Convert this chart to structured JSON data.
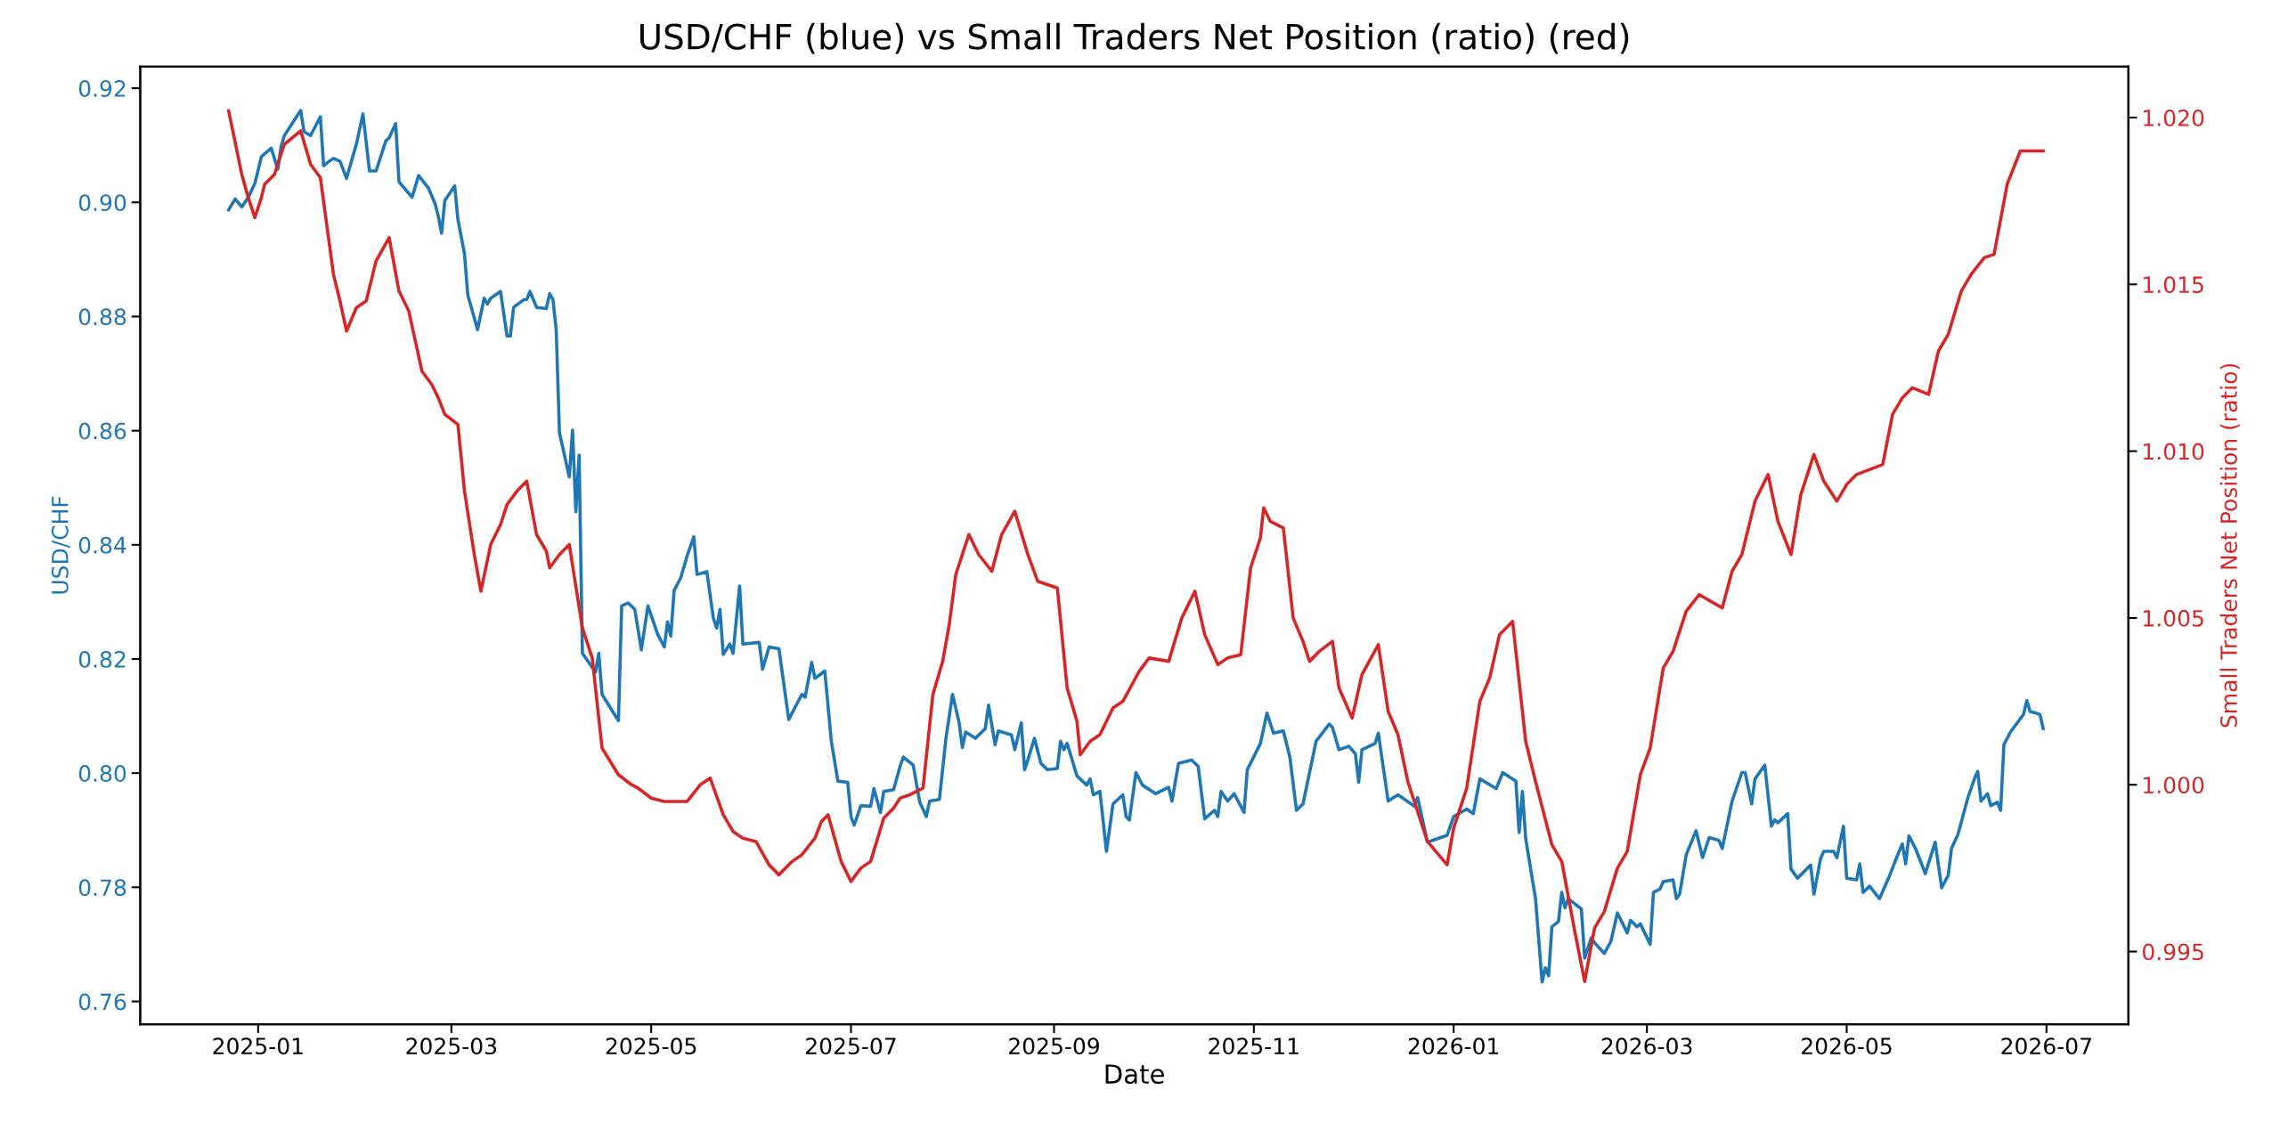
{
  "chart_data": {
    "type": "line",
    "title": "USD/CHF (blue) vs Small Traders Net Position (ratio) (red)",
    "xlabel": "Date",
    "ylabel": "USD/CHF",
    "y2label": "Small Traders Net Position (ratio)",
    "xlim": [
      "2024-11-26",
      "2026-07-26"
    ],
    "xticks": [
      {
        "value": "2025-01-01",
        "label": "2025-01"
      },
      {
        "value": "2025-03-01",
        "label": "2025-03"
      },
      {
        "value": "2025-05-01",
        "label": "2025-05"
      },
      {
        "value": "2025-07-01",
        "label": "2025-07"
      },
      {
        "value": "2025-09-01",
        "label": "2025-09"
      },
      {
        "value": "2025-11-01",
        "label": "2025-11"
      },
      {
        "value": "2026-01-01",
        "label": "2026-01"
      },
      {
        "value": "2026-03-01",
        "label": "2026-03"
      },
      {
        "value": "2026-05-01",
        "label": "2026-05"
      },
      {
        "value": "2026-07-01",
        "label": "2026-07"
      }
    ],
    "ylim": [
      0.756,
      0.9238
    ],
    "yticks": [
      0.76,
      0.78,
      {
        "value": 0.8,
        "label": "0.80"
      },
      0.82,
      0.84,
      0.86,
      0.88,
      {
        "value": 0.9,
        "label": "0.90"
      },
      0.92
    ],
    "y2lim": [
      0.99282,
      1.02153
    ],
    "y2ticks": [
      0.995,
      {
        "value": 1.0,
        "label": "1.000"
      },
      1.005,
      {
        "value": 1.01,
        "label": "1.010"
      },
      1.015,
      {
        "value": 1.02,
        "label": "1.020"
      }
    ],
    "grid": false,
    "series": [
      {
        "color": "#1f77b4",
        "axis": "y",
        "x": [
          "2024-12-23",
          "2024-12-25",
          "2024-12-27",
          "2024-12-29",
          "2024-12-31",
          "2025-01-02",
          "2025-01-05",
          "2025-01-07",
          "2025-01-08",
          "2025-01-09",
          "2025-01-14",
          "2025-01-15",
          "2025-01-17",
          "2025-01-20",
          "2025-01-21",
          "2025-01-22",
          "2025-01-24",
          "2025-01-26",
          "2025-01-28",
          "2025-01-31",
          "2025-02-02",
          "2025-02-04",
          "2025-02-06",
          "2025-02-09",
          "2025-02-10",
          "2025-02-12",
          "2025-02-13",
          "2025-02-17",
          "2025-02-19",
          "2025-02-22",
          "2025-02-24",
          "2025-02-25",
          "2025-02-26",
          "2025-02-27",
          "2025-03-02",
          "2025-03-03",
          "2025-03-05",
          "2025-03-06",
          "2025-03-09",
          "2025-03-11",
          "2025-03-12",
          "2025-03-13",
          "2025-03-16",
          "2025-03-18",
          "2025-03-19",
          "2025-03-20",
          "2025-03-23",
          "2025-03-24",
          "2025-03-25",
          "2025-03-27",
          "2025-03-30",
          "2025-03-31",
          "2025-04-01",
          "2025-04-02",
          "2025-04-03",
          "2025-04-06",
          "2025-04-07",
          "2025-04-08",
          "2025-04-09",
          "2025-04-10",
          "2025-04-14",
          "2025-04-15",
          "2025-04-16",
          "2025-04-21",
          "2025-04-22",
          "2025-04-24",
          "2025-04-26",
          "2025-04-28",
          "2025-04-30",
          "2025-05-03",
          "2025-05-05",
          "2025-05-06",
          "2025-05-07",
          "2025-05-08",
          "2025-05-10",
          "2025-05-12",
          "2025-05-14",
          "2025-05-15",
          "2025-05-18",
          "2025-05-20",
          "2025-05-21",
          "2025-05-22",
          "2025-05-23",
          "2025-05-25",
          "2025-05-26",
          "2025-05-28",
          "2025-05-29",
          "2025-06-03",
          "2025-06-04",
          "2025-06-06",
          "2025-06-09",
          "2025-06-12",
          "2025-06-16",
          "2025-06-17",
          "2025-06-19",
          "2025-06-20",
          "2025-06-23",
          "2025-06-25",
          "2025-06-27",
          "2025-06-30",
          "2025-07-01",
          "2025-07-02",
          "2025-07-04",
          "2025-07-07",
          "2025-07-08",
          "2025-07-10",
          "2025-07-11",
          "2025-07-14",
          "2025-07-16",
          "2025-07-17",
          "2025-07-20",
          "2025-07-22",
          "2025-07-24",
          "2025-07-25",
          "2025-07-28",
          "2025-07-30",
          "2025-08-01",
          "2025-08-03",
          "2025-08-04",
          "2025-08-05",
          "2025-08-08",
          "2025-08-11",
          "2025-08-12",
          "2025-08-14",
          "2025-08-15",
          "2025-08-19",
          "2025-08-20",
          "2025-08-22",
          "2025-08-23",
          "2025-08-24",
          "2025-08-26",
          "2025-08-28",
          "2025-08-30",
          "2025-09-02",
          "2025-09-03",
          "2025-09-04",
          "2025-09-05",
          "2025-09-08",
          "2025-09-11",
          "2025-09-12",
          "2025-09-13",
          "2025-09-15",
          "2025-09-17",
          "2025-09-19",
          "2025-09-22",
          "2025-09-23",
          "2025-09-24",
          "2025-09-26",
          "2025-09-28",
          "2025-10-02",
          "2025-10-06",
          "2025-10-07",
          "2025-10-09",
          "2025-10-13",
          "2025-10-15",
          "2025-10-17",
          "2025-10-20",
          "2025-10-21",
          "2025-10-22",
          "2025-10-24",
          "2025-10-26",
          "2025-10-29",
          "2025-10-30",
          "2025-11-03",
          "2025-11-05",
          "2025-11-07",
          "2025-11-10",
          "2025-11-12",
          "2025-11-14",
          "2025-11-16",
          "2025-11-20",
          "2025-11-24",
          "2025-11-25",
          "2025-11-27",
          "2025-11-30",
          "2025-12-02",
          "2025-12-03",
          "2025-12-04",
          "2025-12-08",
          "2025-12-09",
          "2025-12-12",
          "2025-12-15",
          "2025-12-20",
          "2025-12-21",
          "2025-12-24",
          "2025-12-30",
          "2026-01-01",
          "2026-01-05",
          "2026-01-07",
          "2026-01-09",
          "2026-01-14",
          "2026-01-16",
          "2026-01-20",
          "2026-01-21",
          "2026-01-22",
          "2026-01-23",
          "2026-01-26",
          "2026-01-28",
          "2026-01-29",
          "2026-01-30",
          "2026-01-31",
          "2026-02-02",
          "2026-02-03",
          "2026-02-04",
          "2026-02-05",
          "2026-02-09",
          "2026-02-10",
          "2026-02-12",
          "2026-02-13",
          "2026-02-16",
          "2026-02-18",
          "2026-02-20",
          "2026-02-23",
          "2026-02-24",
          "2026-02-26",
          "2026-02-27",
          "2026-03-02",
          "2026-03-03",
          "2026-03-05",
          "2026-03-06",
          "2026-03-09",
          "2026-03-10",
          "2026-03-11",
          "2026-03-13",
          "2026-03-16",
          "2026-03-18",
          "2026-03-20",
          "2026-03-23",
          "2026-03-24",
          "2026-03-27",
          "2026-03-30",
          "2026-03-31",
          "2026-04-02",
          "2026-04-03",
          "2026-04-06",
          "2026-04-08",
          "2026-04-09",
          "2026-04-10",
          "2026-04-13",
          "2026-04-14",
          "2026-04-16",
          "2026-04-20",
          "2026-04-21",
          "2026-04-23",
          "2026-04-24",
          "2026-04-27",
          "2026-04-28",
          "2026-04-30",
          "2026-05-01",
          "2026-05-04",
          "2026-05-05",
          "2026-05-06",
          "2026-05-08",
          "2026-05-11",
          "2026-05-14",
          "2026-05-17",
          "2026-05-18",
          "2026-05-19",
          "2026-05-20",
          "2026-05-22",
          "2026-05-25",
          "2026-05-28",
          "2026-05-30",
          "2026-06-01",
          "2026-06-02",
          "2026-06-04",
          "2026-06-07",
          "2026-06-09",
          "2026-06-10",
          "2026-06-11",
          "2026-06-13",
          "2026-06-14",
          "2026-06-16",
          "2026-06-17",
          "2026-06-18",
          "2026-06-20",
          "2026-06-24",
          "2026-06-25",
          "2026-06-26",
          "2026-06-29",
          "2026-06-30"
        ],
        "values": [
          0.8987,
          0.9006,
          0.8992,
          0.9009,
          0.9033,
          0.908,
          0.9095,
          0.9058,
          0.9097,
          0.9117,
          0.9161,
          0.9124,
          0.9117,
          0.915,
          0.9064,
          0.9069,
          0.9077,
          0.9072,
          0.9042,
          0.9102,
          0.9155,
          0.9055,
          0.9055,
          0.9108,
          0.9113,
          0.9138,
          0.9036,
          0.9009,
          0.9047,
          0.9025,
          0.8998,
          0.8976,
          0.8946,
          0.9003,
          0.9029,
          0.897,
          0.891,
          0.8838,
          0.8777,
          0.8832,
          0.8822,
          0.8832,
          0.8844,
          0.8766,
          0.8766,
          0.8816,
          0.8829,
          0.883,
          0.8844,
          0.8816,
          0.8814,
          0.884,
          0.883,
          0.8777,
          0.8596,
          0.8519,
          0.8601,
          0.8458,
          0.8557,
          0.821,
          0.8177,
          0.821,
          0.8138,
          0.8092,
          0.8293,
          0.8298,
          0.8287,
          0.8216,
          0.8293,
          0.8243,
          0.8221,
          0.8265,
          0.824,
          0.832,
          0.8342,
          0.8381,
          0.8414,
          0.8348,
          0.8353,
          0.8271,
          0.8254,
          0.8287,
          0.8208,
          0.8226,
          0.821,
          0.8328,
          0.8226,
          0.8229,
          0.8182,
          0.8221,
          0.8218,
          0.8094,
          0.8138,
          0.8133,
          0.8194,
          0.8166,
          0.8179,
          0.8056,
          0.7986,
          0.7984,
          0.7924,
          0.7909,
          0.7943,
          0.7942,
          0.7973,
          0.7931,
          0.7968,
          0.7971,
          0.8012,
          0.8028,
          0.8014,
          0.7949,
          0.7924,
          0.7951,
          0.7954,
          0.8061,
          0.8138,
          0.8089,
          0.8045,
          0.8072,
          0.8061,
          0.8078,
          0.8119,
          0.805,
          0.8074,
          0.8067,
          0.8041,
          0.8088,
          0.8006,
          0.8023,
          0.8061,
          0.8017,
          0.8006,
          0.8008,
          0.8056,
          0.8041,
          0.8052,
          0.7995,
          0.7979,
          0.799,
          0.7962,
          0.7968,
          0.7863,
          0.7946,
          0.7962,
          0.7924,
          0.7918,
          0.8001,
          0.7979,
          0.7964,
          0.7975,
          0.7951,
          0.8017,
          0.8023,
          0.8012,
          0.792,
          0.7935,
          0.7924,
          0.7968,
          0.7951,
          0.7964,
          0.7931,
          0.8006,
          0.8052,
          0.8105,
          0.807,
          0.8074,
          0.8028,
          0.7935,
          0.7946,
          0.8056,
          0.8086,
          0.808,
          0.8041,
          0.8047,
          0.8034,
          0.7984,
          0.8041,
          0.8052,
          0.807,
          0.7951,
          0.7962,
          0.7942,
          0.7957,
          0.7879,
          0.7891,
          0.7924,
          0.7937,
          0.7929,
          0.799,
          0.7973,
          0.8001,
          0.7986,
          0.7896,
          0.7968,
          0.7885,
          0.778,
          0.7634,
          0.7659,
          0.7645,
          0.7731,
          0.774,
          0.7791,
          0.7764,
          0.778,
          0.7762,
          0.7676,
          0.7711,
          0.7703,
          0.7684,
          0.7705,
          0.7755,
          0.772,
          0.7742,
          0.7731,
          0.7736,
          0.77,
          0.7791,
          0.7797,
          0.781,
          0.7813,
          0.778,
          0.7788,
          0.7857,
          0.7899,
          0.7852,
          0.7887,
          0.7882,
          0.7868,
          0.7951,
          0.8001,
          0.8001,
          0.7946,
          0.799,
          0.8014,
          0.7907,
          0.7918,
          0.7913,
          0.7929,
          0.7832,
          0.7816,
          0.7839,
          0.7788,
          0.785,
          0.7863,
          0.7863,
          0.7852,
          0.7907,
          0.7816,
          0.7813,
          0.7841,
          0.7791,
          0.7802,
          0.778,
          0.7819,
          0.7863,
          0.7876,
          0.7841,
          0.789,
          0.7868,
          0.7824,
          0.7879,
          0.7799,
          0.7821,
          0.7868,
          0.7893,
          0.7957,
          0.799,
          0.8003,
          0.7951,
          0.7964,
          0.7943,
          0.7949,
          0.7935,
          0.805,
          0.8072,
          0.8103,
          0.8127,
          0.8108,
          0.8103,
          0.8078
        ]
      },
      {
        "color": "#d62728",
        "axis": "y2",
        "x": [
          "2024-12-23",
          "2024-12-27",
          "2024-12-29",
          "2024-12-31",
          "2025-01-02",
          "2025-01-03",
          "2025-01-06",
          "2025-01-09",
          "2025-01-14",
          "2025-01-17",
          "2025-01-20",
          "2025-01-24",
          "2025-01-26",
          "2025-01-28",
          "2025-01-31",
          "2025-02-03",
          "2025-02-06",
          "2025-02-10",
          "2025-02-13",
          "2025-02-16",
          "2025-02-20",
          "2025-02-23",
          "2025-02-25",
          "2025-02-27",
          "2025-03-03",
          "2025-03-05",
          "2025-03-08",
          "2025-03-10",
          "2025-03-13",
          "2025-03-16",
          "2025-03-18",
          "2025-03-21",
          "2025-03-24",
          "2025-03-27",
          "2025-03-30",
          "2025-03-31",
          "2025-04-03",
          "2025-04-06",
          "2025-04-10",
          "2025-04-13",
          "2025-04-16",
          "2025-04-21",
          "2025-04-25",
          "2025-04-27",
          "2025-05-01",
          "2025-05-05",
          "2025-05-12",
          "2025-05-16",
          "2025-05-19",
          "2025-05-23",
          "2025-05-26",
          "2025-05-29",
          "2025-06-02",
          "2025-06-06",
          "2025-06-09",
          "2025-06-13",
          "2025-06-16",
          "2025-06-20",
          "2025-06-22",
          "2025-06-24",
          "2025-06-26",
          "2025-06-28",
          "2025-07-01",
          "2025-07-04",
          "2025-07-07",
          "2025-07-11",
          "2025-07-14",
          "2025-07-16",
          "2025-07-19",
          "2025-07-23",
          "2025-07-26",
          "2025-07-29",
          "2025-07-31",
          "2025-08-02",
          "2025-08-06",
          "2025-08-09",
          "2025-08-13",
          "2025-08-16",
          "2025-08-20",
          "2025-08-24",
          "2025-08-27",
          "2025-09-02",
          "2025-09-05",
          "2025-09-08",
          "2025-09-09",
          "2025-09-12",
          "2025-09-15",
          "2025-09-19",
          "2025-09-22",
          "2025-09-27",
          "2025-09-30",
          "2025-10-06",
          "2025-10-10",
          "2025-10-14",
          "2025-10-17",
          "2025-10-21",
          "2025-10-24",
          "2025-10-28",
          "2025-10-31",
          "2025-11-03",
          "2025-11-04",
          "2025-11-06",
          "2025-11-10",
          "2025-11-13",
          "2025-11-16",
          "2025-11-18",
          "2025-11-21",
          "2025-11-25",
          "2025-11-27",
          "2025-12-01",
          "2025-12-04",
          "2025-12-09",
          "2025-12-12",
          "2025-12-15",
          "2025-12-18",
          "2025-12-24",
          "2025-12-30",
          "2026-01-01",
          "2026-01-05",
          "2026-01-09",
          "2026-01-12",
          "2026-01-15",
          "2026-01-19",
          "2026-01-23",
          "2026-01-26",
          "2026-01-31",
          "2026-02-03",
          "2026-02-07",
          "2026-02-10",
          "2026-02-13",
          "2026-02-16",
          "2026-02-20",
          "2026-02-23",
          "2026-02-27",
          "2026-03-02",
          "2026-03-06",
          "2026-03-09",
          "2026-03-13",
          "2026-03-17",
          "2026-03-24",
          "2026-03-27",
          "2026-03-30",
          "2026-04-03",
          "2026-04-07",
          "2026-04-10",
          "2026-04-14",
          "2026-04-17",
          "2026-04-21",
          "2026-04-24",
          "2026-04-28",
          "2026-05-01",
          "2026-05-04",
          "2026-05-12",
          "2026-05-15",
          "2026-05-18",
          "2026-05-21",
          "2026-05-26",
          "2026-05-29",
          "2026-06-01",
          "2026-06-05",
          "2026-06-08",
          "2026-06-12",
          "2026-06-15",
          "2026-06-19",
          "2026-06-23",
          "2026-06-30"
        ],
        "values": [
          1.0202,
          1.0183,
          1.0176,
          1.017,
          1.0176,
          1.018,
          1.0183,
          1.0192,
          1.0196,
          1.0186,
          1.0182,
          1.0153,
          1.0145,
          1.0136,
          1.0143,
          1.0145,
          1.0157,
          1.0164,
          1.0148,
          1.0142,
          1.0124,
          1.012,
          1.0116,
          1.0111,
          1.0108,
          1.0088,
          1.0069,
          1.0058,
          1.0072,
          1.0078,
          1.0084,
          1.0088,
          1.0091,
          1.0075,
          1.007,
          1.0065,
          1.0069,
          1.0072,
          1.0047,
          1.0038,
          1.0011,
          1.0003,
          1.0,
          0.9999,
          0.9996,
          0.9995,
          0.9995,
          1.0,
          1.0002,
          0.9991,
          0.9986,
          0.9984,
          0.9983,
          0.9976,
          0.9973,
          0.9977,
          0.9979,
          0.9984,
          0.9989,
          0.9991,
          0.9984,
          0.9977,
          0.9971,
          0.9975,
          0.9977,
          0.999,
          0.9993,
          0.9996,
          0.9997,
          0.9999,
          1.0027,
          1.0037,
          1.0048,
          1.0063,
          1.0075,
          1.0069,
          1.0064,
          1.0075,
          1.0082,
          1.0069,
          1.0061,
          1.0059,
          1.0029,
          1.0019,
          1.0009,
          1.0013,
          1.0015,
          1.0023,
          1.0025,
          1.0034,
          1.0038,
          1.0037,
          1.005,
          1.0058,
          1.0045,
          1.0036,
          1.0038,
          1.0039,
          1.0065,
          1.0074,
          1.0083,
          1.0079,
          1.0077,
          1.005,
          1.0043,
          1.0037,
          1.004,
          1.0043,
          1.0029,
          1.002,
          1.0033,
          1.0042,
          1.0022,
          1.0015,
          1.0001,
          0.9983,
          0.9976,
          0.9987,
          0.9999,
          1.0025,
          1.0032,
          1.0045,
          1.0049,
          1.0013,
          1.0001,
          0.9982,
          0.9977,
          0.9956,
          0.9941,
          0.9957,
          0.9962,
          0.9975,
          0.998,
          1.0003,
          1.0011,
          1.0035,
          1.004,
          1.0052,
          1.0057,
          1.0053,
          1.0064,
          1.0069,
          1.0085,
          1.0093,
          1.0079,
          1.0069,
          1.0087,
          1.0099,
          1.0091,
          1.0085,
          1.009,
          1.0093,
          1.0096,
          1.0111,
          1.0116,
          1.0119,
          1.0117,
          1.013,
          1.0135,
          1.0148,
          1.0153,
          1.0158,
          1.0159,
          1.018,
          1.019,
          1.019
        ]
      }
    ]
  }
}
